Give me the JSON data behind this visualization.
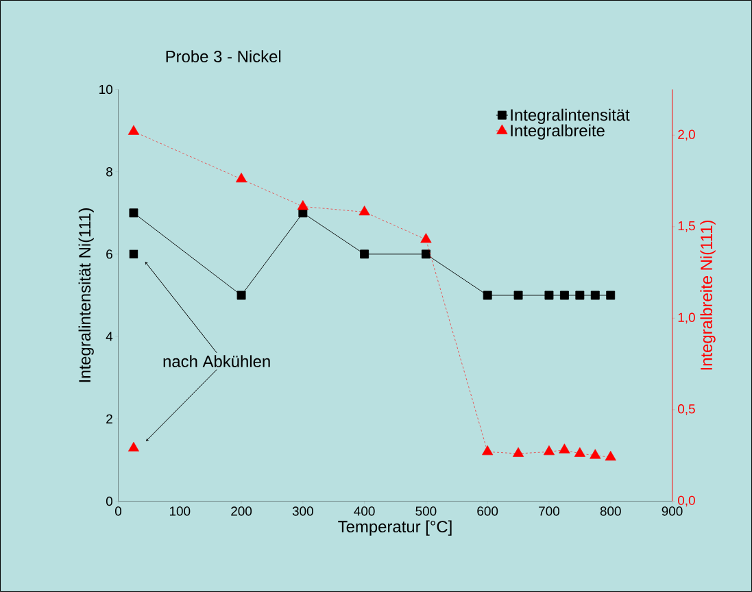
{
  "chart_data": {
    "type": "line",
    "title": "Probe 3  -  Nickel",
    "xlabel": "Temperatur [°C]",
    "ylabel": "Integralintensität Ni(111)",
    "y2label": "Integralbreite Ni(111)",
    "annotations": [
      "nach Abkühlen"
    ],
    "xlim": [
      0,
      900
    ],
    "xticks": [
      0,
      100,
      200,
      300,
      400,
      500,
      600,
      700,
      800,
      900
    ],
    "ylim": [
      0,
      10
    ],
    "yticks": [
      0,
      2,
      4,
      6,
      8,
      10
    ],
    "y2lim": [
      0,
      2.25
    ],
    "y2ticks": [
      {
        "value": 0,
        "label": "0,0"
      },
      {
        "value": 0.5,
        "label": "0,5"
      },
      {
        "value": 1,
        "label": "1,0"
      },
      {
        "value": 1.5,
        "label": "1,5"
      },
      {
        "value": 2,
        "label": "2,0"
      }
    ],
    "legend": "top right",
    "series": [
      {
        "type": "line",
        "name": "Integralintensität",
        "color": "#000000",
        "marker": "square",
        "line_style": "solid",
        "axis": "y",
        "x": [
          25,
          200,
          300,
          400,
          500,
          600,
          650,
          700,
          725,
          750,
          775,
          800
        ],
        "values": [
          7,
          5,
          7,
          6,
          6,
          5,
          5,
          5,
          5,
          5,
          5,
          5
        ]
      },
      {
        "type": "line",
        "name": "Integralbreite",
        "color": "#ff0000",
        "marker": "triangle",
        "line_style": "dashed",
        "axis": "y2",
        "x": [
          25,
          200,
          300,
          400,
          500,
          600,
          650,
          700,
          725,
          750,
          775,
          800
        ],
        "values": [
          2.02,
          1.76,
          1.61,
          1.58,
          1.43,
          0.27,
          0.26,
          0.27,
          0.28,
          0.26,
          0.25,
          0.24
        ]
      },
      {
        "type": "scatter",
        "color": "#000000",
        "marker": "square",
        "axis": "y",
        "x": [
          25
        ],
        "values": [
          6
        ]
      },
      {
        "type": "scatter",
        "color": "#ff0000",
        "marker": "triangle",
        "axis": "y2",
        "x": [
          25
        ],
        "values": [
          0.29
        ]
      }
    ]
  }
}
